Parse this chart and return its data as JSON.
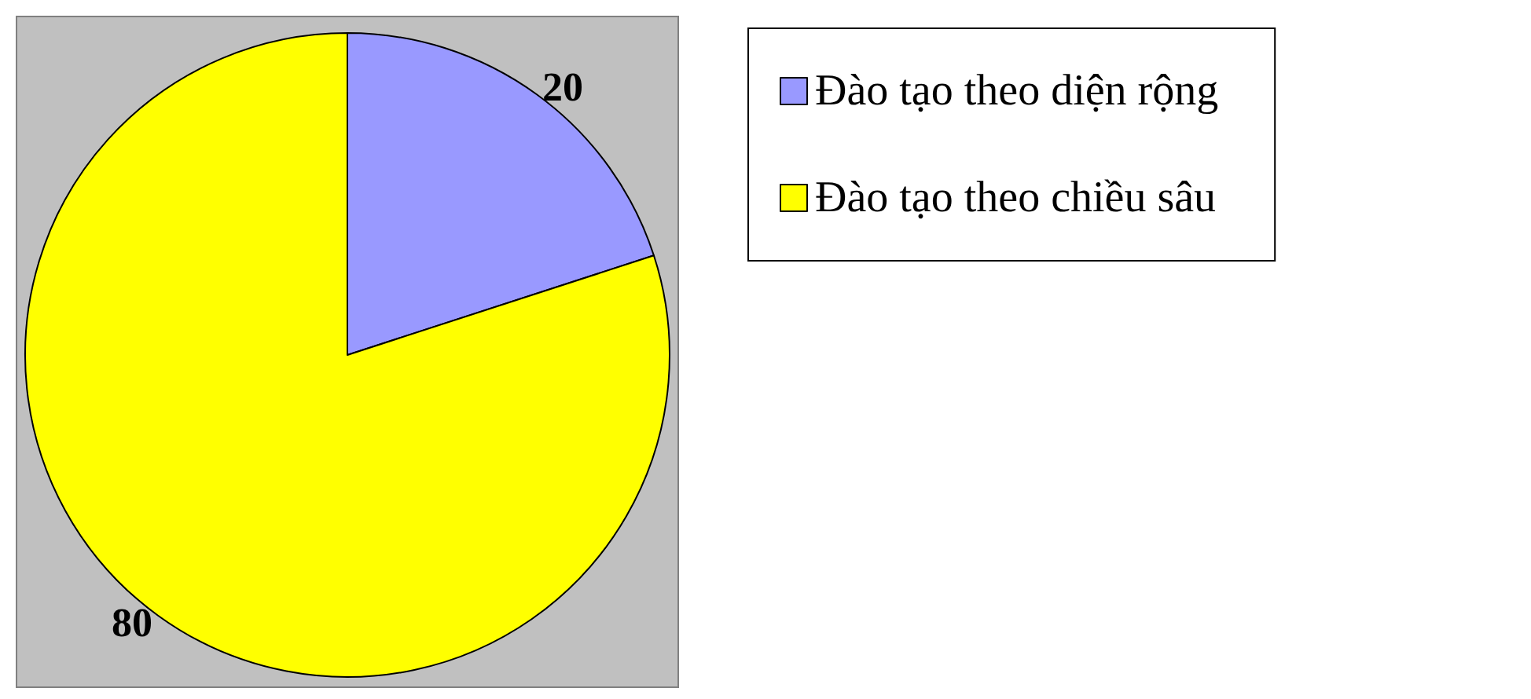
{
  "chart_data": {
    "type": "pie",
    "categories": [
      "Đào tạo theo diện rộng",
      "Đào tạo theo chiều sâu"
    ],
    "values": [
      20,
      80
    ],
    "colors": [
      "#9999ff",
      "#ffff00"
    ],
    "data_labels": true,
    "legend": "right"
  }
}
